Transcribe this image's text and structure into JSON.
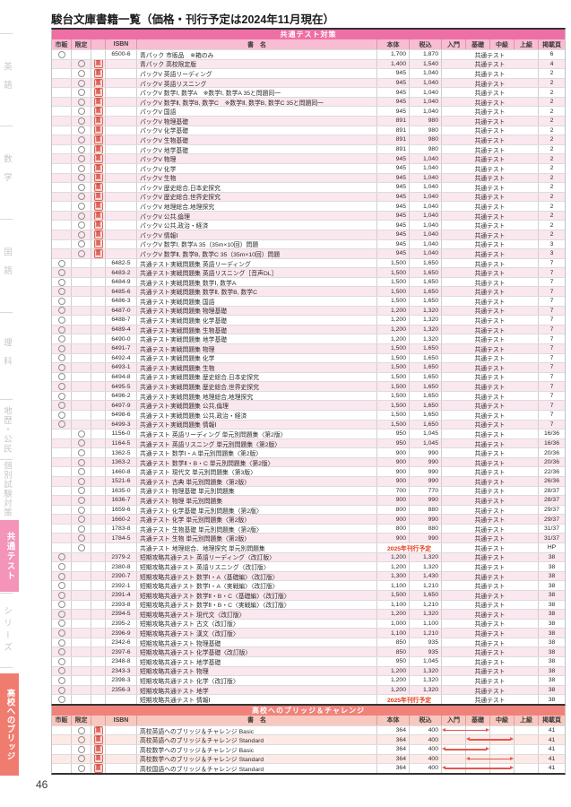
{
  "page": {
    "title": "駿台文庫書籍一覧（価格・刊行予定は2024年11月現在）",
    "page_number": "46"
  },
  "colors": {
    "section1_band": "#ee6fa4",
    "section1_header": "#f8bdd3",
    "section2_band": "#ef837b",
    "section2_header": "#f8c7bf",
    "release_red": "#e73817",
    "arrow_red": "#e4574e",
    "sidebar_active_pink": "#f394b8",
    "sidebar_active_salmon": "#f07c70"
  },
  "icons": {
    "direct_badge": "直",
    "availability_mark": "circle-outline"
  },
  "sidebar": {
    "items": [
      {
        "id": "english",
        "label": "英語",
        "active": false
      },
      {
        "id": "math",
        "label": "数学",
        "active": false
      },
      {
        "id": "japanese",
        "label": "国語",
        "active": false
      },
      {
        "id": "science",
        "label": "理科",
        "active": false
      },
      {
        "id": "geo-civics",
        "label": "地歴・公民",
        "active": false
      },
      {
        "id": "individual-exam",
        "label": "個別試験対策",
        "active": false
      },
      {
        "id": "kyotsu-test",
        "label": "共通テスト",
        "active": true,
        "accent": "#f394b8"
      },
      {
        "id": "series",
        "label": "シリーズ",
        "active": false
      },
      {
        "id": "bridge-to-highschool",
        "label": "高校へのブリッジ",
        "active": true,
        "accent": "#f07c70"
      }
    ]
  },
  "tables": [
    {
      "id": "kyotsu-taisaku",
      "variant": "pink",
      "section_title": "共通テスト対策",
      "columns": [
        "市販",
        "限定",
        "",
        "ISBN",
        "書　名",
        "本体",
        "税込",
        "入門",
        "基礎",
        "中級",
        "上級",
        "掲載頁"
      ],
      "level_label": "共通テスト",
      "rows": [
        {
          "mk": "s",
          "isbn": "6500-6",
          "t": "青パック 市販品　※箱のみ",
          "b": "1,700",
          "x": "1,870",
          "pg": "6"
        },
        {
          "mk": "g",
          "d": 1,
          "t": "青パック 高校限定版",
          "b": "1,400",
          "x": "1,540",
          "pg": "4"
        },
        {
          "mk": "g",
          "d": 1,
          "t": "パックV 英語リーディング",
          "b": "945",
          "x": "1,040",
          "pg": "2"
        },
        {
          "mk": "g",
          "d": 1,
          "t": "パックV 英語リスニング",
          "b": "945",
          "x": "1,040",
          "pg": "2"
        },
        {
          "mk": "g",
          "d": 1,
          "t": "パックV 数学Ⅰ, 数学A　※数学Ⅰ, 数学A 35と問題同一",
          "b": "945",
          "x": "1,040",
          "pg": "2"
        },
        {
          "mk": "g",
          "d": 1,
          "t": "パックV 数学Ⅱ, 数学B, 数学C　※数学Ⅱ, 数学B, 数学C 35と問題同一",
          "b": "945",
          "x": "1,040",
          "pg": "2"
        },
        {
          "mk": "g",
          "d": 1,
          "t": "パックV 国語",
          "b": "945",
          "x": "1,040",
          "pg": "2"
        },
        {
          "mk": "g",
          "d": 1,
          "t": "パックV 物理基礎",
          "b": "891",
          "x": "980",
          "pg": "2"
        },
        {
          "mk": "g",
          "d": 1,
          "t": "パックV 化学基礎",
          "b": "891",
          "x": "980",
          "pg": "2"
        },
        {
          "mk": "g",
          "d": 1,
          "t": "パックV 生物基礎",
          "b": "891",
          "x": "980",
          "pg": "2"
        },
        {
          "mk": "g",
          "d": 1,
          "t": "パックV 地学基礎",
          "b": "891",
          "x": "980",
          "pg": "2"
        },
        {
          "mk": "g",
          "d": 1,
          "t": "パックV 物理",
          "b": "945",
          "x": "1,040",
          "pg": "2"
        },
        {
          "mk": "g",
          "d": 1,
          "t": "パックV 化学",
          "b": "945",
          "x": "1,040",
          "pg": "2"
        },
        {
          "mk": "g",
          "d": 1,
          "t": "パックV 生物",
          "b": "945",
          "x": "1,040",
          "pg": "2"
        },
        {
          "mk": "g",
          "d": 1,
          "t": "パックV 歴史総合,日本史探究",
          "b": "945",
          "x": "1,040",
          "pg": "2"
        },
        {
          "mk": "g",
          "d": 1,
          "t": "パックV 歴史総合,世界史探究",
          "b": "945",
          "x": "1,040",
          "pg": "2"
        },
        {
          "mk": "g",
          "d": 1,
          "t": "パックV 地理総合,地理探究",
          "b": "945",
          "x": "1,040",
          "pg": "2"
        },
        {
          "mk": "g",
          "d": 1,
          "t": "パックV 公共,倫理",
          "b": "945",
          "x": "1,040",
          "pg": "2"
        },
        {
          "mk": "g",
          "d": 1,
          "t": "パックV 公共,政治・経済",
          "b": "945",
          "x": "1,040",
          "pg": "2"
        },
        {
          "mk": "g",
          "d": 1,
          "t": "パックV 情報Ⅰ",
          "b": "945",
          "x": "1,040",
          "pg": "2"
        },
        {
          "mk": "g",
          "d": 1,
          "t": "パックV 数学Ⅰ, 数学A 35（35m×10回）問題",
          "b": "945",
          "x": "1,040",
          "pg": "3"
        },
        {
          "mk": "g",
          "d": 1,
          "t": "パックV 数学Ⅱ, 数学B, 数学C 35（35m×10回）問題",
          "b": "945",
          "x": "1,040",
          "pg": "3"
        },
        {
          "mk": "s",
          "isbn": "6482-5",
          "t": "共通テスト実戦問題集 英語リーディング",
          "b": "1,500",
          "x": "1,650",
          "pg": "7"
        },
        {
          "mk": "s",
          "isbn": "6483-2",
          "t": "共通テスト実戦問題集 英語リスニング［音声DL］",
          "b": "1,500",
          "x": "1,650",
          "pg": "7"
        },
        {
          "mk": "s",
          "isbn": "6484-9",
          "t": "共通テスト実戦問題集 数学Ⅰ, 数学A",
          "b": "1,500",
          "x": "1,650",
          "pg": "7"
        },
        {
          "mk": "s",
          "isbn": "6485-6",
          "t": "共通テスト実戦問題集 数学Ⅱ, 数学B, 数学C",
          "b": "1,500",
          "x": "1,650",
          "pg": "7"
        },
        {
          "mk": "s",
          "isbn": "6486-3",
          "t": "共通テスト実戦問題集 国語",
          "b": "1,500",
          "x": "1,650",
          "pg": "7"
        },
        {
          "mk": "s",
          "isbn": "6487-0",
          "t": "共通テスト実戦問題集 物理基礎",
          "b": "1,200",
          "x": "1,320",
          "pg": "7"
        },
        {
          "mk": "s",
          "isbn": "6488-7",
          "t": "共通テスト実戦問題集 化学基礎",
          "b": "1,200",
          "x": "1,320",
          "pg": "7"
        },
        {
          "mk": "s",
          "isbn": "6489-4",
          "t": "共通テスト実戦問題集 生物基礎",
          "b": "1,200",
          "x": "1,320",
          "pg": "7"
        },
        {
          "mk": "s",
          "isbn": "6490-0",
          "t": "共通テスト実戦問題集 地学基礎",
          "b": "1,200",
          "x": "1,320",
          "pg": "7"
        },
        {
          "mk": "s",
          "isbn": "6491-7",
          "t": "共通テスト実戦問題集 物理",
          "b": "1,500",
          "x": "1,650",
          "pg": "7"
        },
        {
          "mk": "s",
          "isbn": "6492-4",
          "t": "共通テスト実戦問題集 化学",
          "b": "1,500",
          "x": "1,650",
          "pg": "7"
        },
        {
          "mk": "s",
          "isbn": "6493-1",
          "t": "共通テスト実戦問題集 生物",
          "b": "1,500",
          "x": "1,650",
          "pg": "7"
        },
        {
          "mk": "s",
          "isbn": "6494-8",
          "t": "共通テスト実戦問題集 歴史総合,日本史探究",
          "b": "1,500",
          "x": "1,650",
          "pg": "7"
        },
        {
          "mk": "s",
          "isbn": "6495-5",
          "t": "共通テスト実戦問題集 歴史総合,世界史探究",
          "b": "1,500",
          "x": "1,650",
          "pg": "7"
        },
        {
          "mk": "s",
          "isbn": "6496-2",
          "t": "共通テスト実戦問題集 地理総合,地理探究",
          "b": "1,500",
          "x": "1,650",
          "pg": "7"
        },
        {
          "mk": "s",
          "isbn": "6497-9",
          "t": "共通テスト実戦問題集 公共,倫理",
          "b": "1,500",
          "x": "1,650",
          "pg": "7"
        },
        {
          "mk": "s",
          "isbn": "6498-6",
          "t": "共通テスト実戦問題集 公共,政治・経済",
          "b": "1,500",
          "x": "1,650",
          "pg": "7"
        },
        {
          "mk": "s",
          "isbn": "6499-3",
          "t": "共通テスト実戦問題集 情報Ⅰ",
          "b": "1,500",
          "x": "1,650",
          "pg": "7"
        },
        {
          "mk": "g",
          "isbn": "1156-0",
          "t": "共通テスト 英語リーディング 単元別問題集〈第2版〉",
          "b": "950",
          "x": "1,045",
          "pg": "16/36"
        },
        {
          "mk": "g",
          "isbn": "1164-5",
          "t": "共通テスト 英語リスニング 単元別問題集〈第2版〉",
          "b": "950",
          "x": "1,045",
          "pg": "16/36"
        },
        {
          "mk": "g",
          "isbn": "1362-5",
          "t": "共通テスト 数学Ⅰ・A 単元別問題集〈第2版〉",
          "b": "900",
          "x": "990",
          "pg": "20/36"
        },
        {
          "mk": "g",
          "isbn": "1363-2",
          "t": "共通テスト 数学Ⅱ・B・C 単元別問題集〈第2版〉",
          "b": "900",
          "x": "990",
          "pg": "20/36"
        },
        {
          "mk": "g",
          "isbn": "1460-8",
          "t": "共通テスト 現代文 単元別問題集〈第3版〉",
          "b": "900",
          "x": "990",
          "pg": "22/36"
        },
        {
          "mk": "g",
          "isbn": "1521-6",
          "t": "共通テスト 古典 単元別問題集〈第2版〉",
          "b": "900",
          "x": "990",
          "pg": "26/36"
        },
        {
          "mk": "g",
          "isbn": "1635-0",
          "t": "共通テスト 物理基礎 単元別問題集",
          "b": "700",
          "x": "770",
          "pg": "28/37"
        },
        {
          "mk": "g",
          "isbn": "1636-7",
          "t": "共通テスト 物理 単元別問題集",
          "b": "900",
          "x": "990",
          "pg": "28/37"
        },
        {
          "mk": "g",
          "isbn": "1659-6",
          "t": "共通テスト 化学基礎 単元別問題集〈第2版〉",
          "b": "800",
          "x": "880",
          "pg": "29/37"
        },
        {
          "mk": "g",
          "isbn": "1660-2",
          "t": "共通テスト 化学 単元別問題集〈第2版〉",
          "b": "900",
          "x": "990",
          "pg": "29/37"
        },
        {
          "mk": "g",
          "isbn": "1783-8",
          "t": "共通テスト 生物基礎 単元別問題集〈第2版〉",
          "b": "800",
          "x": "880",
          "pg": "31/37"
        },
        {
          "mk": "g",
          "isbn": "1784-5",
          "t": "共通テスト 生物 単元別問題集〈第2版〉",
          "b": "900",
          "x": "990",
          "pg": "31/37"
        },
        {
          "mk": "g",
          "t": "共通テスト 地理総合、地理探究 単元別問題集",
          "release": "2025年刊行予定",
          "pg": "HP"
        },
        {
          "mk": "s",
          "isbn": "2379-2",
          "t": "短期攻略共通テスト 英語リーディング〈改訂版〉",
          "b": "1,200",
          "x": "1,320",
          "pg": "38"
        },
        {
          "mk": "s",
          "isbn": "2380-8",
          "t": "短期攻略共通テスト 英語リスニング〈改訂版〉",
          "b": "1,200",
          "x": "1,320",
          "pg": "38"
        },
        {
          "mk": "s",
          "isbn": "2390-7",
          "t": "短期攻略共通テスト 数学Ⅰ・A〈基礎編〉〈改訂版〉",
          "b": "1,300",
          "x": "1,430",
          "pg": "38"
        },
        {
          "mk": "s",
          "isbn": "2392-1",
          "t": "短期攻略共通テスト 数学Ⅰ・A〈実戦編〉〈改訂版〉",
          "b": "1,100",
          "x": "1,210",
          "pg": "38"
        },
        {
          "mk": "s",
          "isbn": "2391-4",
          "t": "短期攻略共通テスト 数学Ⅱ・B・C〈基礎編〉〈改訂版〉",
          "b": "1,500",
          "x": "1,650",
          "pg": "38"
        },
        {
          "mk": "s",
          "isbn": "2393-8",
          "t": "短期攻略共通テスト 数学Ⅱ・B・C〈実戦編〉〈改訂版〉",
          "b": "1,100",
          "x": "1,210",
          "pg": "38"
        },
        {
          "mk": "s",
          "isbn": "2394-5",
          "t": "短期攻略共通テスト 現代文〈改訂版〉",
          "b": "1,200",
          "x": "1,320",
          "pg": "38"
        },
        {
          "mk": "s",
          "isbn": "2395-2",
          "t": "短期攻略共通テスト 古文〈改訂版〉",
          "b": "1,000",
          "x": "1,100",
          "pg": "38"
        },
        {
          "mk": "s",
          "isbn": "2396-9",
          "t": "短期攻略共通テスト 漢文〈改訂版〉",
          "b": "1,100",
          "x": "1,210",
          "pg": "38"
        },
        {
          "mk": "s",
          "isbn": "2342-6",
          "t": "短期攻略共通テスト 物理基礎",
          "b": "850",
          "x": "935",
          "pg": "38"
        },
        {
          "mk": "s",
          "isbn": "2397-6",
          "t": "短期攻略共通テスト 化学基礎〈改訂版〉",
          "b": "850",
          "x": "935",
          "pg": "38"
        },
        {
          "mk": "s",
          "isbn": "2348-8",
          "t": "短期攻略共通テスト 地学基礎",
          "b": "950",
          "x": "1,045",
          "pg": "38"
        },
        {
          "mk": "s",
          "isbn": "2343-3",
          "t": "短期攻略共通テスト 物理",
          "b": "1,200",
          "x": "1,320",
          "pg": "38"
        },
        {
          "mk": "s",
          "isbn": "2398-3",
          "t": "短期攻略共通テスト 化学〈改訂版〉",
          "b": "1,200",
          "x": "1,320",
          "pg": "38"
        },
        {
          "mk": "s",
          "isbn": "2356-3",
          "t": "短期攻略共通テスト 地学",
          "b": "1,200",
          "x": "1,320",
          "pg": "38"
        },
        {
          "mk": "s",
          "t": "短期攻略共通テスト 情報Ⅰ",
          "release": "2025年刊行予定",
          "pg": "38"
        }
      ]
    },
    {
      "id": "bridge-challenge",
      "variant": "salmon",
      "section_title": "高校へのブリッジ＆チャレンジ",
      "columns": [
        "市販",
        "限定",
        "",
        "ISBN",
        "書　名",
        "本体",
        "税込",
        "入門",
        "基礎",
        "中級",
        "上級",
        "掲載頁"
      ],
      "level_label": "",
      "rows": [
        {
          "mk": "g",
          "d": 1,
          "t": "高校英語へのブリッジ＆チャレンジ Basic",
          "b": "364",
          "x": "400",
          "arrow": [
            0,
            1
          ],
          "pg": "41"
        },
        {
          "mk": "g",
          "d": 1,
          "t": "高校英語へのブリッジ＆チャレンジ Standard",
          "b": "364",
          "x": "400",
          "arrow": [
            1,
            2
          ],
          "pg": "41"
        },
        {
          "mk": "g",
          "d": 1,
          "t": "高校数学へのブリッジ＆チャレンジ Basic",
          "b": "364",
          "x": "400",
          "arrow": [
            0,
            1
          ],
          "pg": "41"
        },
        {
          "mk": "g",
          "d": 1,
          "t": "高校数学へのブリッジ＆チャレンジ Standard",
          "b": "364",
          "x": "400",
          "arrow": [
            1,
            2
          ],
          "pg": "41"
        },
        {
          "mk": "g",
          "d": 1,
          "t": "高校国語へのブリッジ＆チャレンジ Standard",
          "b": "364",
          "x": "400",
          "arrow": [
            0,
            2
          ],
          "pg": "41"
        }
      ]
    }
  ]
}
